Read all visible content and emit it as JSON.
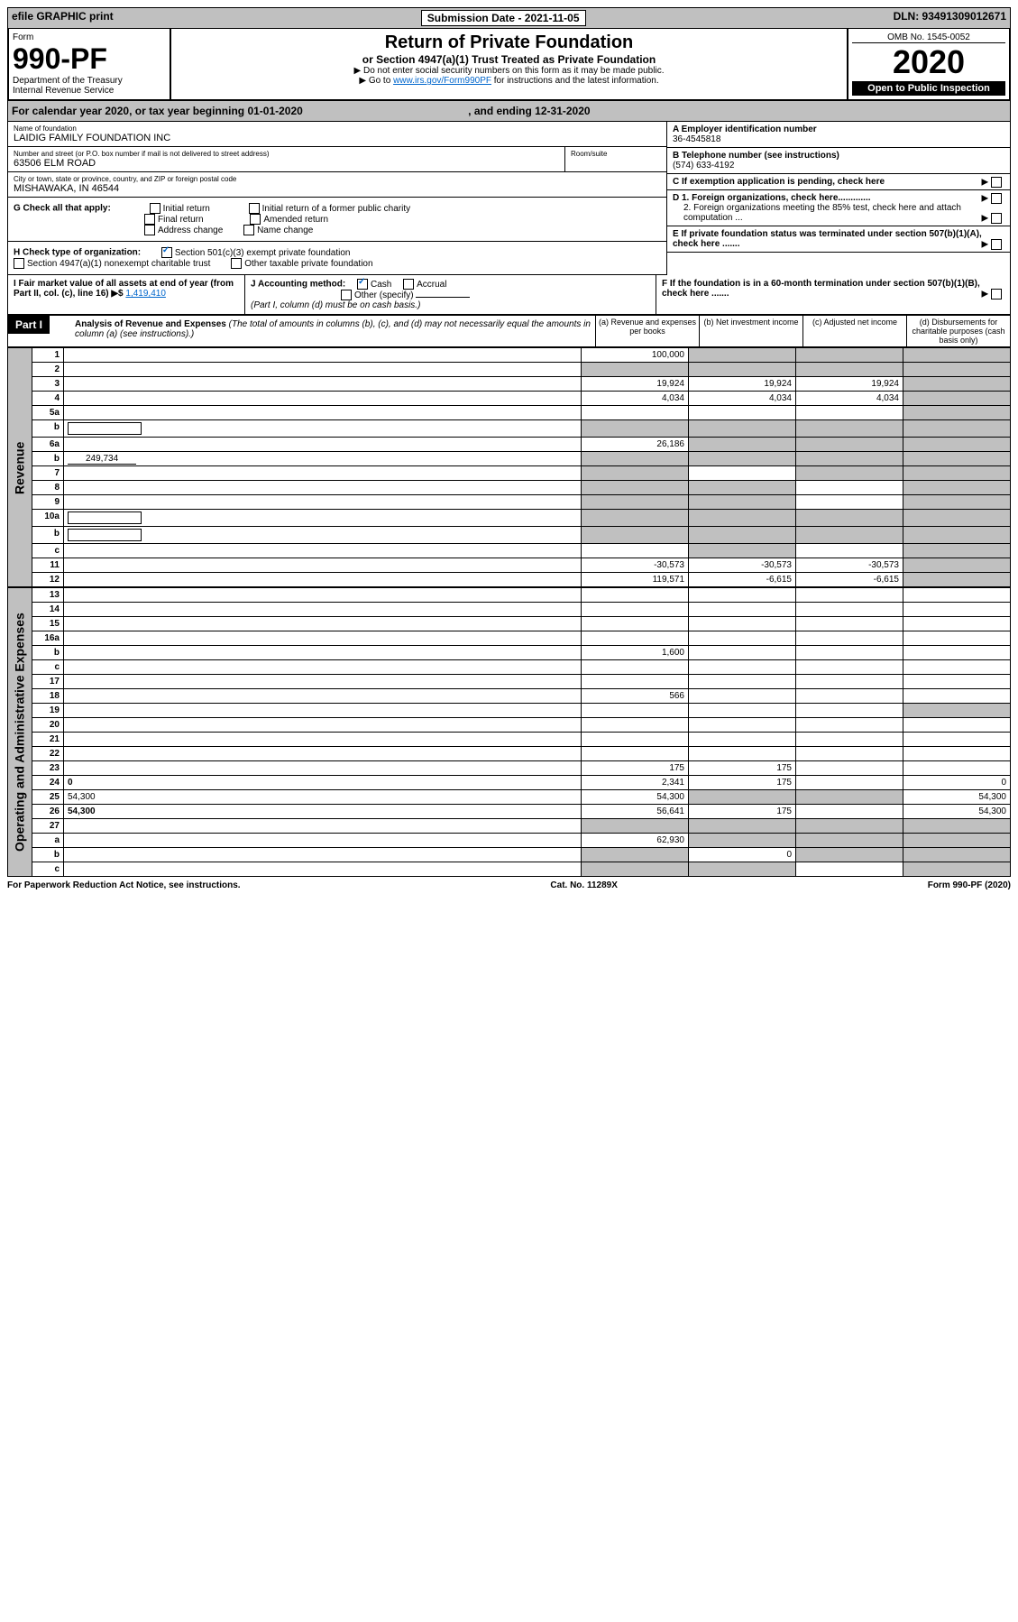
{
  "topbar": {
    "efile": "efile GRAPHIC print",
    "submission_label": "Submission Date - 2021-11-05",
    "dln": "DLN: 93491309012671"
  },
  "header": {
    "form_label": "Form",
    "form_number": "990-PF",
    "dept": "Department of the Treasury",
    "irs": "Internal Revenue Service",
    "title": "Return of Private Foundation",
    "subtitle": "or Section 4947(a)(1) Trust Treated as Private Foundation",
    "note1": "▶ Do not enter social security numbers on this form as it may be made public.",
    "note2_pre": "▶ Go to ",
    "note2_link": "www.irs.gov/Form990PF",
    "note2_post": " for instructions and the latest information.",
    "omb": "OMB No. 1545-0052",
    "year": "2020",
    "open": "Open to Public Inspection"
  },
  "calendar": {
    "text": "For calendar year 2020, or tax year beginning 01-01-2020",
    "ending": ", and ending 12-31-2020"
  },
  "foundation": {
    "name_label": "Name of foundation",
    "name": "LAIDIG FAMILY FOUNDATION INC",
    "addr_label": "Number and street (or P.O. box number if mail is not delivered to street address)",
    "addr": "63506 ELM ROAD",
    "room_label": "Room/suite",
    "city_label": "City or town, state or province, country, and ZIP or foreign postal code",
    "city": "MISHAWAKA, IN  46544",
    "ein_label": "A Employer identification number",
    "ein": "36-4545818",
    "phone_label": "B Telephone number (see instructions)",
    "phone": "(574) 633-4192",
    "c_label": "C If exemption application is pending, check here",
    "d1": "D 1. Foreign organizations, check here.............",
    "d2": "2. Foreign organizations meeting the 85% test, check here and attach computation ...",
    "e": "E  If private foundation status was terminated under section 507(b)(1)(A), check here .......",
    "f": "F  If the foundation is in a 60-month termination under section 507(b)(1)(B), check here .......",
    "g_label": "G Check all that apply:",
    "g_initial": "Initial return",
    "g_final": "Final return",
    "g_addr": "Address change",
    "g_initial_former": "Initial return of a former public charity",
    "g_amended": "Amended return",
    "g_name": "Name change",
    "h_label": "H Check type of organization:",
    "h_501": "Section 501(c)(3) exempt private foundation",
    "h_4947": "Section 4947(a)(1) nonexempt charitable trust",
    "h_other": "Other taxable private foundation",
    "i_label": "I Fair market value of all assets at end of year (from Part II, col. (c), line 16) ▶$ ",
    "i_value": "1,419,410",
    "j_label": "J Accounting method:",
    "j_cash": "Cash",
    "j_accrual": "Accrual",
    "j_other": "Other (specify)",
    "j_note": "(Part I, column (d) must be on cash basis.)"
  },
  "part1": {
    "label": "Part I",
    "title": "Analysis of Revenue and Expenses",
    "subtitle": "(The total of amounts in columns (b), (c), and (d) may not necessarily equal the amounts in column (a) (see instructions).)",
    "col_a": "(a) Revenue and expenses per books",
    "col_b": "(b) Net investment income",
    "col_c": "(c) Adjusted net income",
    "col_d": "(d) Disbursements for charitable purposes (cash basis only)"
  },
  "side": {
    "revenue": "Revenue",
    "expenses": "Operating and Administrative Expenses"
  },
  "rows": [
    {
      "n": "1",
      "d": "",
      "a": "100,000",
      "b": "",
      "c": "",
      "shade_bcd": true
    },
    {
      "n": "2",
      "d": "",
      "a": "",
      "b": "",
      "c": "",
      "shade_all": true
    },
    {
      "n": "3",
      "d": "",
      "a": "19,924",
      "b": "19,924",
      "c": "19,924",
      "shade_d": true
    },
    {
      "n": "4",
      "d": "",
      "a": "4,034",
      "b": "4,034",
      "c": "4,034",
      "shade_d": true
    },
    {
      "n": "5a",
      "d": "",
      "a": "",
      "b": "",
      "c": "",
      "shade_d": true
    },
    {
      "n": "b",
      "d": "",
      "a": "",
      "b": "",
      "c": "",
      "shade_all": true,
      "inline": true
    },
    {
      "n": "6a",
      "d": "",
      "a": "26,186",
      "b": "",
      "c": "",
      "shade_bcd": true
    },
    {
      "n": "b",
      "d": "",
      "inline_val": "249,734",
      "a": "",
      "b": "",
      "c": "",
      "shade_all": true
    },
    {
      "n": "7",
      "d": "",
      "a": "",
      "b": "",
      "c": "",
      "shade_a": true,
      "shade_cd": true
    },
    {
      "n": "8",
      "d": "",
      "a": "",
      "b": "",
      "c": "",
      "shade_ab": true,
      "shade_d": true
    },
    {
      "n": "9",
      "d": "",
      "a": "",
      "b": "",
      "c": "",
      "shade_ab": true,
      "shade_d": true
    },
    {
      "n": "10a",
      "d": "",
      "a": "",
      "b": "",
      "c": "",
      "shade_all": true,
      "inline": true
    },
    {
      "n": "b",
      "d": "",
      "a": "",
      "b": "",
      "c": "",
      "shade_all": true,
      "inline": true
    },
    {
      "n": "c",
      "d": "",
      "a": "",
      "b": "",
      "c": "",
      "shade_b": true,
      "shade_d": true
    },
    {
      "n": "11",
      "d": "",
      "a": "-30,573",
      "b": "-30,573",
      "c": "-30,573",
      "shade_d": true
    },
    {
      "n": "12",
      "d": "",
      "a": "119,571",
      "b": "-6,615",
      "c": "-6,615",
      "shade_d": true,
      "bold": true
    }
  ],
  "exp_rows": [
    {
      "n": "13",
      "d": "",
      "a": "",
      "b": "",
      "c": ""
    },
    {
      "n": "14",
      "d": "",
      "a": "",
      "b": "",
      "c": ""
    },
    {
      "n": "15",
      "d": "",
      "a": "",
      "b": "",
      "c": ""
    },
    {
      "n": "16a",
      "d": "",
      "a": "",
      "b": "",
      "c": ""
    },
    {
      "n": "b",
      "d": "",
      "a": "1,600",
      "b": "",
      "c": ""
    },
    {
      "n": "c",
      "d": "",
      "a": "",
      "b": "",
      "c": ""
    },
    {
      "n": "17",
      "d": "",
      "a": "",
      "b": "",
      "c": ""
    },
    {
      "n": "18",
      "d": "",
      "a": "566",
      "b": "",
      "c": ""
    },
    {
      "n": "19",
      "d": "",
      "a": "",
      "b": "",
      "c": "",
      "shade_d": true
    },
    {
      "n": "20",
      "d": "",
      "a": "",
      "b": "",
      "c": ""
    },
    {
      "n": "21",
      "d": "",
      "a": "",
      "b": "",
      "c": ""
    },
    {
      "n": "22",
      "d": "",
      "a": "",
      "b": "",
      "c": ""
    },
    {
      "n": "23",
      "d": "",
      "a": "175",
      "b": "175",
      "c": ""
    },
    {
      "n": "24",
      "d": "0",
      "a": "2,341",
      "b": "175",
      "c": "",
      "bold": true
    },
    {
      "n": "25",
      "d": "54,300",
      "a": "54,300",
      "b": "",
      "c": "",
      "shade_bc": true
    },
    {
      "n": "26",
      "d": "54,300",
      "a": "56,641",
      "b": "175",
      "c": "",
      "bold": true
    },
    {
      "n": "27",
      "d": "",
      "a": "",
      "b": "",
      "c": "",
      "shade_all": true
    },
    {
      "n": "a",
      "d": "",
      "a": "62,930",
      "b": "",
      "c": "",
      "shade_bcd": true,
      "bold": true
    },
    {
      "n": "b",
      "d": "",
      "a": "",
      "b": "0",
      "c": "",
      "shade_a": true,
      "shade_cd": true,
      "bold": true
    },
    {
      "n": "c",
      "d": "",
      "a": "",
      "b": "",
      "c": "",
      "shade_ab": true,
      "shade_d": true,
      "bold": true
    }
  ],
  "footer": {
    "left": "For Paperwork Reduction Act Notice, see instructions.",
    "mid": "Cat. No. 11289X",
    "right": "Form 990-PF (2020)"
  }
}
